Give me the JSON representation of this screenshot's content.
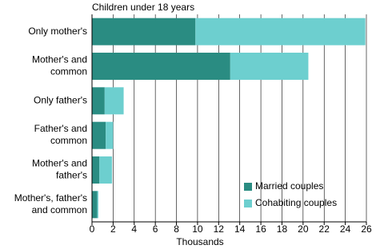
{
  "chart_data": {
    "type": "bar",
    "orientation": "horizontal",
    "stacked": true,
    "title": "Children under 18 years",
    "x_label": "Thousands",
    "categories": [
      "Only mother's",
      "Mother's and\ncommon",
      "Only father's",
      "Father's and\ncommon",
      "Mother's and\nfather's",
      "Mother's, father's\nand common"
    ],
    "series": [
      {
        "name": "Married couples",
        "color": "#2a8c82",
        "values": [
          9.8,
          13.1,
          1.2,
          1.3,
          0.7,
          0.5
        ]
      },
      {
        "name": "Cohabiting couples",
        "color": "#6dcfcf",
        "values": [
          16.1,
          7.4,
          1.8,
          0.7,
          1.2,
          0.1
        ]
      }
    ],
    "xlim": [
      0,
      26
    ],
    "xticks": [
      0,
      2,
      4,
      6,
      8,
      10,
      12,
      14,
      16,
      18,
      20,
      22,
      24,
      26
    ],
    "grid": true,
    "legend": "lower right"
  }
}
